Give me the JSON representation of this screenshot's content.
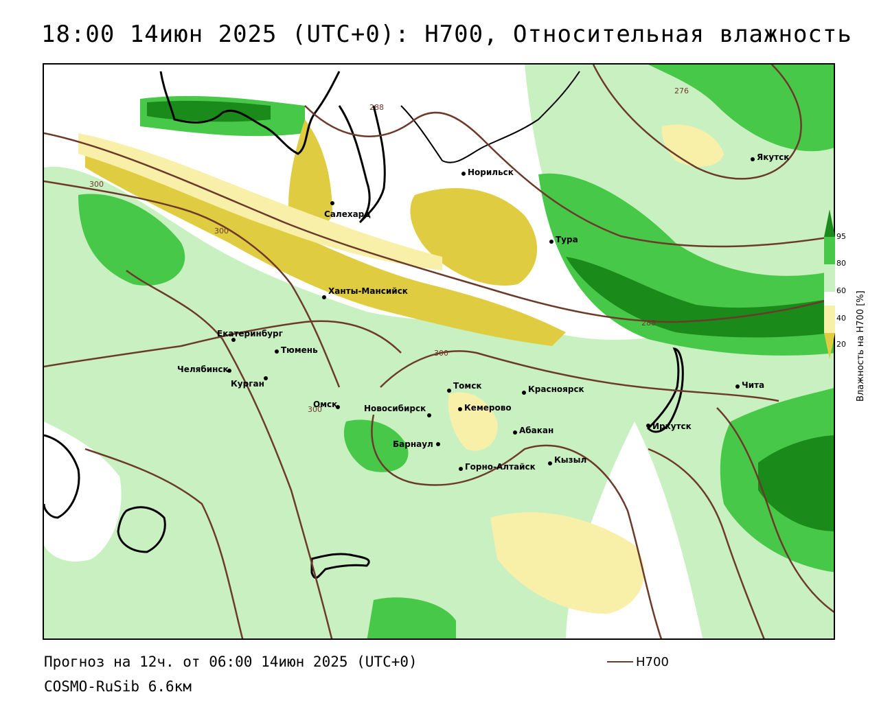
{
  "title": "18:00 14июн 2025 (UTC+0): H700, Относительная влажность",
  "footer": {
    "forecast": "Прогноз на 12ч. от 06:00 14июн 2025 (UTC+0)",
    "model": "COSMO-RuSib 6.6км",
    "line_legend": "H700"
  },
  "colorbar": {
    "title": "Влажность на H700 [%]",
    "ticks": [
      "95",
      "80",
      "60",
      "40",
      "20"
    ],
    "colors": {
      "c95": "#1a8a1a",
      "c80": "#48c848",
      "c60": "#c8f0c0",
      "c50": "#ffffff",
      "c40": "#f8f0a8",
      "c20": "#e0cc40"
    }
  },
  "isolines": {
    "color": "#6b3a2a",
    "labels": [
      "276",
      "288",
      "288",
      "300",
      "300",
      "300",
      "300"
    ]
  },
  "cities": [
    {
      "name": "Якутск"
    },
    {
      "name": "Норильск"
    },
    {
      "name": "Салехард"
    },
    {
      "name": "Тура"
    },
    {
      "name": "Ханты-Мансийск"
    },
    {
      "name": "Екатеринбург"
    },
    {
      "name": "Тюмень"
    },
    {
      "name": "Челябинск"
    },
    {
      "name": "Курган"
    },
    {
      "name": "Томск"
    },
    {
      "name": "Красноярск"
    },
    {
      "name": "Омск"
    },
    {
      "name": "Новосибирск"
    },
    {
      "name": "Кемерово"
    },
    {
      "name": "Абакан"
    },
    {
      "name": "Барнаул"
    },
    {
      "name": "Горно-Алтайск"
    },
    {
      "name": "Кызыл"
    },
    {
      "name": "Иркутск"
    },
    {
      "name": "Чита"
    }
  ]
}
